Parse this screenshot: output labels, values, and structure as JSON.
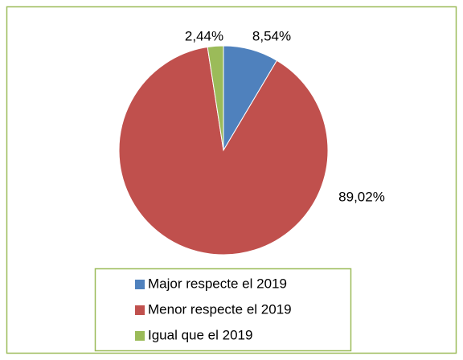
{
  "chart_data": {
    "type": "pie",
    "categories": [
      "Major respecte el 2019",
      "Menor respecte el 2019",
      "Igual que el 2019"
    ],
    "values": [
      8.54,
      89.02,
      2.44
    ],
    "value_labels": [
      "8,54%",
      "89,02%",
      "2,44%"
    ],
    "colors": [
      "#4f81bd",
      "#c0504d",
      "#9bbb59"
    ],
    "legend": "bottom"
  }
}
